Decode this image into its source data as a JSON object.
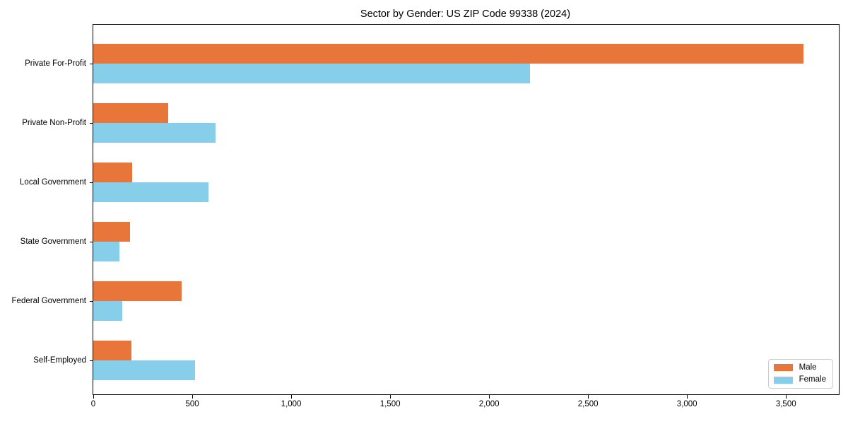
{
  "chart_data": {
    "type": "bar",
    "orientation": "horizontal",
    "title": "Sector by Gender: US ZIP Code 99338 (2024)",
    "categories": [
      "Private For-Profit",
      "Private Non-Profit",
      "Local Government",
      "State Government",
      "Federal Government",
      "Self-Employed"
    ],
    "series": [
      {
        "name": "Male",
        "color": "#e8763b",
        "values": [
          3588,
          378,
          196,
          187,
          446,
          192
        ]
      },
      {
        "name": "Female",
        "color": "#87ceeb",
        "values": [
          2207,
          618,
          582,
          131,
          145,
          515
        ]
      }
    ],
    "xlim": [
      0,
      3767
    ],
    "xticks": [
      0,
      500,
      1000,
      1500,
      2000,
      2500,
      3000,
      3500
    ],
    "xtick_labels": [
      "0",
      "500",
      "1,000",
      "1,500",
      "2,000",
      "2,500",
      "3,000",
      "3,500"
    ],
    "xlabel": "",
    "ylabel": "",
    "grid": false,
    "legend_position": "lower right"
  }
}
